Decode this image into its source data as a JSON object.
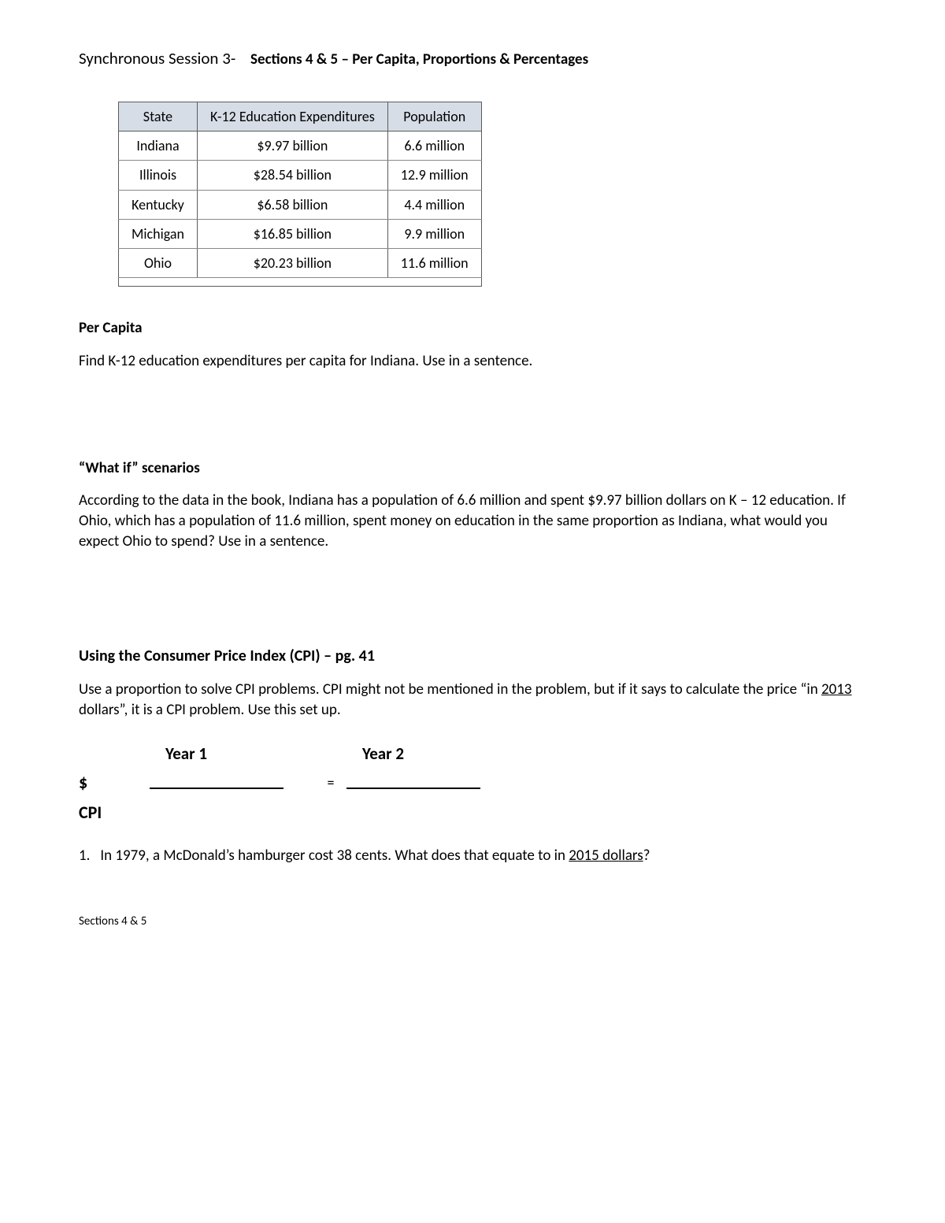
{
  "title": {
    "main": "Synchronous Session 3-",
    "sub": "Sections 4 & 5 – Per Capita, Proportions & Percentages"
  },
  "table": {
    "headers": [
      "State",
      "K-12 Education Expenditures",
      "Population"
    ],
    "header_bg": "#d6dde7",
    "border_color": "#5b5b5b",
    "rows": [
      [
        "Indiana",
        "$9.97 billion",
        "6.6 million"
      ],
      [
        "Illinois",
        "$28.54 billion",
        "12.9 million"
      ],
      [
        "Kentucky",
        "$6.58 billion",
        "4.4 million"
      ],
      [
        "Michigan",
        "$16.85 billion",
        "9.9 million"
      ],
      [
        "Ohio",
        "$20.23 billion",
        "11.6 million"
      ]
    ]
  },
  "sections": {
    "percapita_head": "Per Capita",
    "percapita_text": "Find K-12 education expenditures per capita for Indiana.  Use in a sentence.",
    "whatif_head": "“What if” scenarios",
    "whatif_text": "According to the data in the book, Indiana has a population of 6.6 million and spent $9.97 billion dollars on K – 12 education. If Ohio, which has a population of 11.6 million, spent money on education in the same proportion as Indiana, what would you expect Ohio to spend?  Use in a sentence.",
    "cpi_head": "Using the Consumer Price Index (CPI) – pg. 41",
    "cpi_text_1": "Use a proportion to solve CPI problems.  CPI might not be mentioned in the problem, but if it says to calculate the price “in ",
    "cpi_text_ul": "2013",
    "cpi_text_2": " dollars”, it is a CPI problem.  Use this set up."
  },
  "cpi_grid": {
    "year1": "Year 1",
    "year2": "Year 2",
    "row_money": "$",
    "row_cpi": "CPI",
    "eq": "="
  },
  "question": {
    "num": "1.",
    "text_1": "In 1979, a McDonald’s hamburger cost 38 cents.  What does that equate to in ",
    "text_ul": "2015 dollars",
    "text_2": "?"
  },
  "footer": "Sections 4 & 5"
}
